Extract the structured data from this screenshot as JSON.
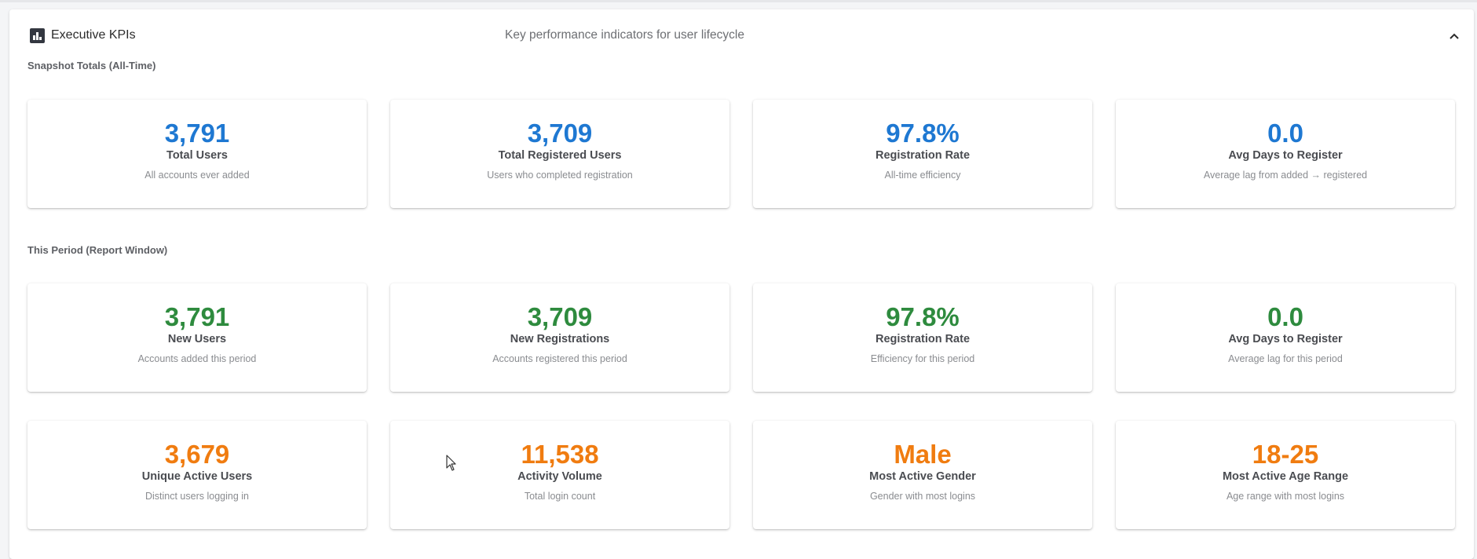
{
  "header": {
    "title": "Executive KPIs",
    "subtitle": "Key performance indicators for user lifecycle"
  },
  "sections": {
    "snapshot": "Snapshot Totals (All-Time)",
    "period": "This Period (Report Window)"
  },
  "snapshot_cards": [
    {
      "value": "3,791",
      "label": "Total Users",
      "desc": "All accounts ever added"
    },
    {
      "value": "3,709",
      "label": "Total Registered Users",
      "desc": "Users who completed registration"
    },
    {
      "value": "97.8%",
      "label": "Registration Rate",
      "desc": "All-time efficiency"
    },
    {
      "value": "0.0",
      "label": "Avg Days to Register",
      "desc": "Average lag from added → registered"
    }
  ],
  "period_cards": [
    {
      "value": "3,791",
      "label": "New Users",
      "desc": "Accounts added this period"
    },
    {
      "value": "3,709",
      "label": "New Registrations",
      "desc": "Accounts registered this period"
    },
    {
      "value": "97.8%",
      "label": "Registration Rate",
      "desc": "Efficiency for this period"
    },
    {
      "value": "0.0",
      "label": "Avg Days to Register",
      "desc": "Average lag for this period"
    }
  ],
  "activity_cards": [
    {
      "value": "3,679",
      "label": "Unique Active Users",
      "desc": "Distinct users logging in"
    },
    {
      "value": "11,538",
      "label": "Activity Volume",
      "desc": "Total login count"
    },
    {
      "value": "Male",
      "label": "Most Active Gender",
      "desc": "Gender with most logins"
    },
    {
      "value": "18-25",
      "label": "Most Active Age Range",
      "desc": "Age range with most logins"
    }
  ],
  "colors": {
    "snapshot": "#1e78d2",
    "period": "#2e8b3e",
    "activity": "#f07c10"
  },
  "icons": {
    "header": "bar-chart-icon",
    "collapse": "chevron-up-icon"
  }
}
